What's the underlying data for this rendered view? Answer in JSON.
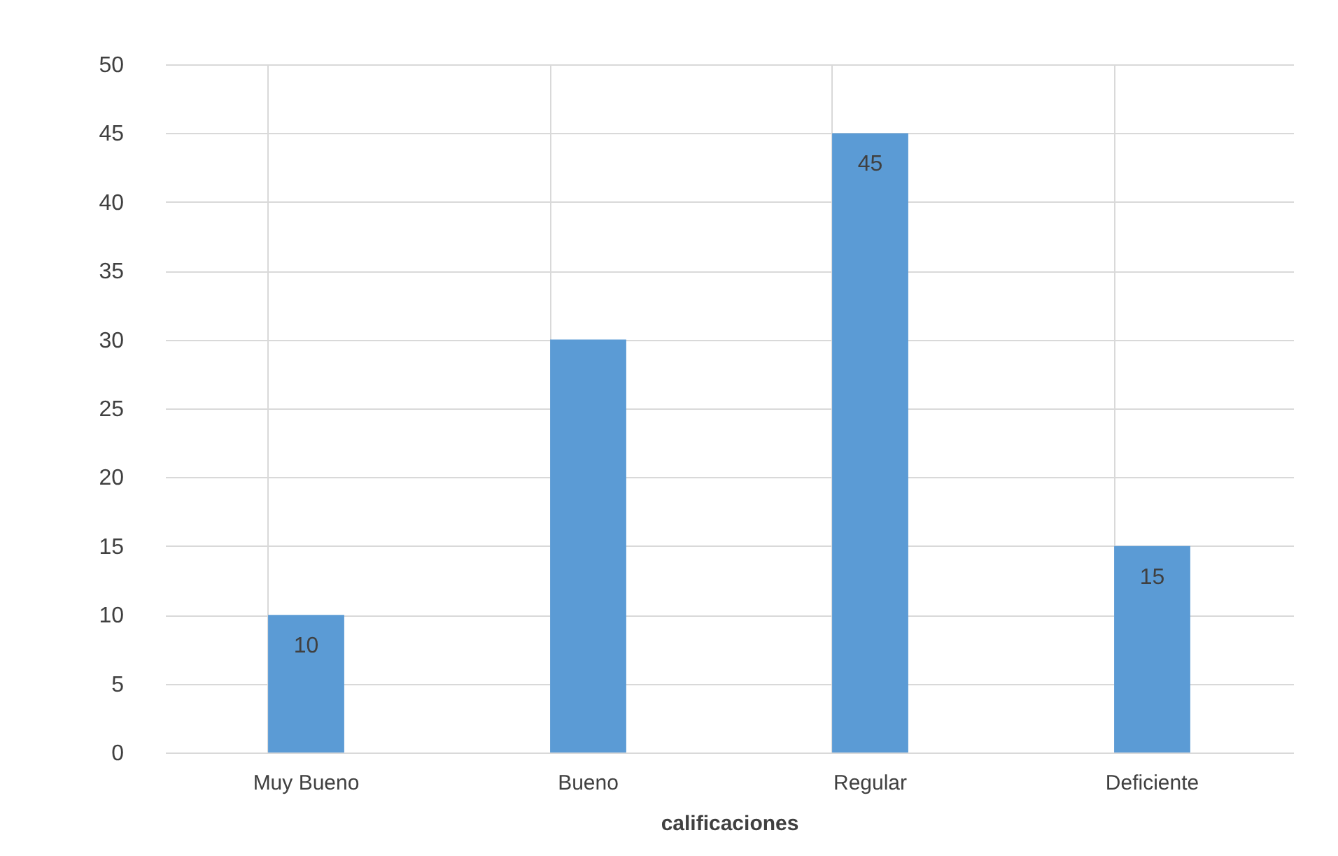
{
  "chart_data": {
    "type": "bar",
    "xlabel": "calificaciones",
    "categories": [
      "Muy Bueno",
      "Bueno",
      "Regular",
      "Deficiente"
    ],
    "values": [
      10,
      30,
      45,
      15
    ],
    "value_labels": [
      "10",
      null,
      "45",
      "15"
    ],
    "color": "#5b9bd5",
    "ylim": [
      0,
      50
    ],
    "yticks": [
      0,
      5,
      10,
      15,
      20,
      25,
      30,
      35,
      40,
      45,
      50
    ],
    "grid": true
  }
}
